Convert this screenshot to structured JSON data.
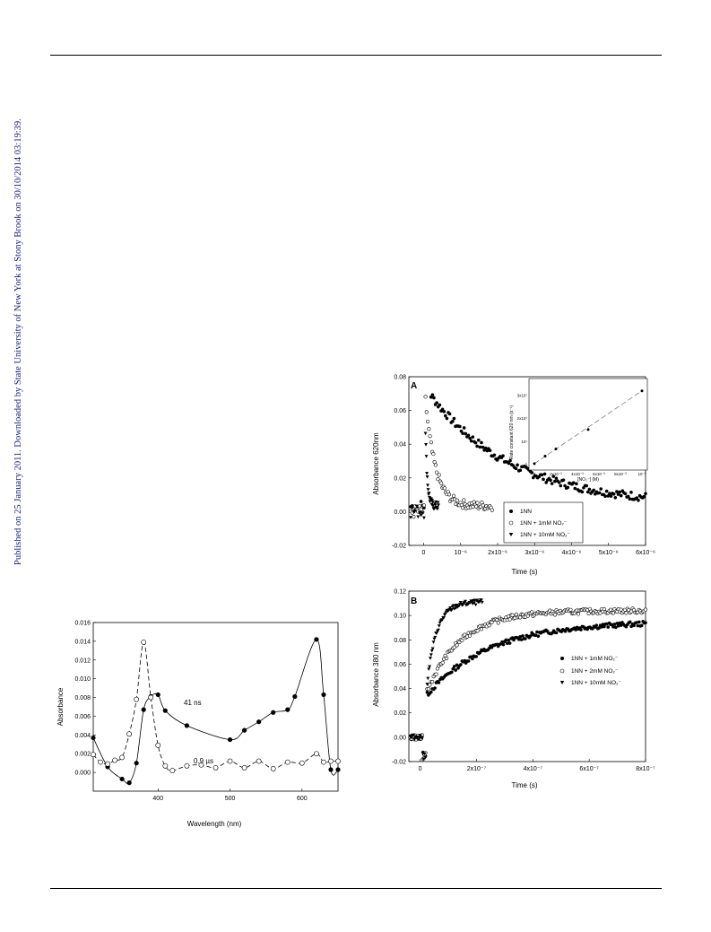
{
  "margin_note": "Published on 25 January 2011. Downloaded by State University of New York at Stony Brook on 30/10/2014 03:19:39.",
  "figures": {
    "left": {
      "xlabel": "Wavelength (nm)",
      "ylabel": "Absorbance",
      "annotations": [
        "41 ns",
        "0.9 µs"
      ]
    },
    "panel_a": {
      "letter": "A",
      "xlabel": "Time (s)",
      "ylabel": "Absorbance 620nm",
      "legend": [
        {
          "marker": "filled-circle",
          "label": "1NN"
        },
        {
          "marker": "open-circle",
          "label": "1NN + 1mM NO₂⁻"
        },
        {
          "marker": "filled-triangle",
          "label": "1NN + 10mM NO₂⁻"
        }
      ],
      "inset": {
        "xlabel": "[NO₂⁻] (M)",
        "ylabel": "Rate constant 620 nm (s⁻¹)"
      }
    },
    "panel_b": {
      "letter": "B",
      "xlabel": "Time (s)",
      "ylabel": "Absorbance 380 nm",
      "legend": [
        {
          "marker": "filled-circle",
          "label": "1NN + 1mM NO₂⁻"
        },
        {
          "marker": "open-circle",
          "label": "1NN + 2mM NO₂⁻"
        },
        {
          "marker": "filled-triangle",
          "label": "1NN + 10mM NO₂⁻"
        }
      ]
    }
  },
  "chart_data": [
    {
      "type": "line",
      "xlabel": "Wavelength (nm)",
      "ylabel": "Absorbance",
      "xlim": [
        310,
        650
      ],
      "ylim": [
        -0.002,
        0.016
      ],
      "x_ticks": [
        "400",
        "500",
        "600"
      ],
      "y_ticks": [
        "0.000",
        "0.002",
        "0.004",
        "0.006",
        "0.008",
        "0.010",
        "0.012",
        "0.014",
        "0.016"
      ],
      "series": [
        {
          "name": "41 ns",
          "marker": "filled-circle",
          "line": "solid",
          "x": [
            310,
            330,
            350,
            360,
            370,
            380,
            390,
            400,
            410,
            440,
            500,
            520,
            540,
            560,
            580,
            590,
            620,
            630,
            640,
            650
          ],
          "y": [
            0.0037,
            0.0006,
            -0.0007,
            -0.0011,
            0.001,
            0.0067,
            0.0081,
            0.0083,
            0.0066,
            0.005,
            0.0035,
            0.0045,
            0.0054,
            0.0064,
            0.0067,
            0.0081,
            0.0142,
            0.0083,
            0.0003,
            0.0003
          ]
        },
        {
          "name": "0.9 µs",
          "marker": "open-circle",
          "line": "dashed",
          "x": [
            310,
            320,
            330,
            340,
            350,
            360,
            370,
            380,
            390,
            400,
            410,
            420,
            440,
            460,
            480,
            500,
            520,
            540,
            560,
            580,
            600,
            620,
            630,
            640,
            650
          ],
          "y": [
            0.0019,
            0.0011,
            0.0009,
            0.0013,
            0.0016,
            0.0041,
            0.0078,
            0.0139,
            0.008,
            0.0029,
            0.0007,
            0.0002,
            0.0007,
            0.0008,
            0.0005,
            0.0012,
            0.0005,
            0.0012,
            0.0004,
            0.0011,
            0.001,
            0.002,
            0.0011,
            0.0012,
            0.0012
          ]
        }
      ]
    },
    {
      "type": "scatter",
      "xlabel": "Time (s)",
      "ylabel": "Absorbance 620nm",
      "xlim": [
        -4e-07,
        6e-06
      ],
      "ylim": [
        -0.02,
        0.08
      ],
      "x_ticks": [
        "0",
        "10⁻⁶",
        "2x10⁻⁶",
        "3x10⁻⁶",
        "4x10⁻⁶",
        "5x10⁻⁶",
        "6x10⁻⁶"
      ],
      "y_ticks": [
        "-0.02",
        "0.00",
        "0.02",
        "0.04",
        "0.06",
        "0.08"
      ],
      "series": [
        {
          "name": "1NN",
          "marker": "filled-circle",
          "baseline": 0.003,
          "peak": 0.065,
          "tau": 2.2e-06,
          "x_end": 6e-06
        },
        {
          "name": "1NN + 1mM NO₂⁻",
          "marker": "open-circle",
          "baseline": 0.0,
          "peak": 0.063,
          "tau": 2.7e-07,
          "x_end": 1.85e-06
        },
        {
          "name": "1NN + 10mM NO₂⁻",
          "marker": "filled-triangle",
          "baseline": 0.0,
          "peak": 0.045,
          "tau": 5e-08,
          "x_end": 4e-07
        }
      ],
      "inset": {
        "type": "line",
        "xlabel": "[NO₂⁻] (M)",
        "ylabel": "Rate constant 620 nm (s⁻¹)",
        "xlim": [
          0,
          0.01
        ],
        "x_ticks": [
          "0",
          "2x10⁻³",
          "4x10⁻³",
          "6x10⁻³",
          "8x10⁻³",
          "10⁻²"
        ],
        "y_ticks": [
          "0",
          "10⁷",
          "2x10⁷",
          "3x10⁷"
        ],
        "ylim": [
          0,
          35000000.0
        ],
        "x": [
          0,
          0.001,
          0.002,
          0.005,
          0.01
        ],
        "y": [
          450000.0,
          3700000.0,
          6800000.0,
          15200000.0,
          32000000.0
        ]
      }
    },
    {
      "type": "scatter",
      "xlabel": "Time (s)",
      "ylabel": "Absorbance 380 nm",
      "xlim": [
        -4e-08,
        8e-07
      ],
      "ylim": [
        -0.02,
        0.12
      ],
      "x_ticks": [
        "0",
        "2x10⁻⁷",
        "4x10⁻⁷",
        "6x10⁻⁷",
        "8x10⁻⁷"
      ],
      "y_ticks": [
        "-0.02",
        "0.00",
        "0.02",
        "0.04",
        "0.06",
        "0.08",
        "0.10",
        "0.12"
      ],
      "series": [
        {
          "name": "1NN + 1mM NO₂⁻",
          "marker": "filled-circle",
          "jump": 0.035,
          "plateau": 0.095,
          "tau": 2.2e-07,
          "x_end": 8e-07
        },
        {
          "name": "1NN + 2mM NO₂⁻",
          "marker": "open-circle",
          "jump": 0.038,
          "plateau": 0.104,
          "tau": 1.2e-07,
          "x_end": 8e-07
        },
        {
          "name": "1NN + 10mM NO₂⁻",
          "marker": "filled-triangle",
          "jump": 0.045,
          "plateau": 0.111,
          "tau": 3.5e-08,
          "x_end": 2.2e-07
        }
      ]
    }
  ]
}
